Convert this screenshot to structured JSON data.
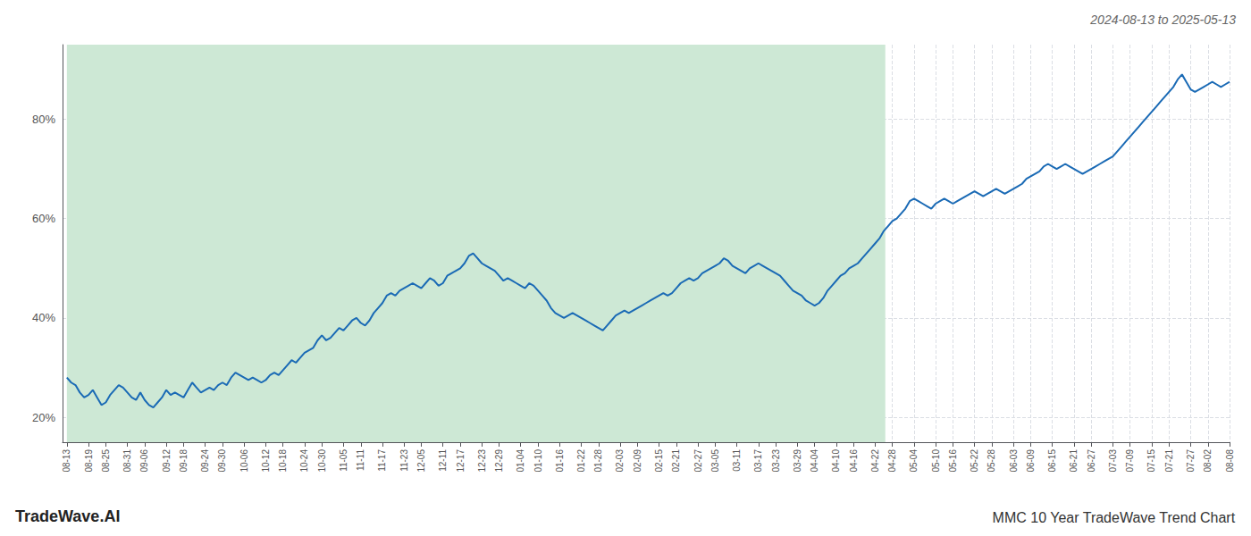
{
  "chart_data": {
    "type": "line",
    "title": "2024-08-13 to 2025-05-13",
    "annotations": [
      "TradeWave.AI",
      "MMC 10 Year TradeWave Trend Chart"
    ],
    "color": "#1a6ab5",
    "grid": true,
    "xlim": [
      0,
      270
    ],
    "xticks": [
      {
        "value": 1,
        "label": "08-13"
      },
      {
        "value": 6,
        "label": "08-19"
      },
      {
        "value": 10,
        "label": "08-25"
      },
      {
        "value": 15,
        "label": "08-31"
      },
      {
        "value": 19,
        "label": "09-06"
      },
      {
        "value": 24,
        "label": "09-12"
      },
      {
        "value": 28,
        "label": "09-18"
      },
      {
        "value": 33,
        "label": "09-24"
      },
      {
        "value": 37,
        "label": "09-30"
      },
      {
        "value": 42,
        "label": "10-06"
      },
      {
        "value": 47,
        "label": "10-12"
      },
      {
        "value": 51,
        "label": "10-18"
      },
      {
        "value": 56,
        "label": "10-24"
      },
      {
        "value": 60,
        "label": "10-30"
      },
      {
        "value": 65,
        "label": "11-05"
      },
      {
        "value": 69,
        "label": "11-11"
      },
      {
        "value": 74,
        "label": "11-17"
      },
      {
        "value": 79,
        "label": "11-23"
      },
      {
        "value": 83,
        "label": "12-05"
      },
      {
        "value": 88,
        "label": "12-11"
      },
      {
        "value": 92,
        "label": "12-17"
      },
      {
        "value": 97,
        "label": "12-23"
      },
      {
        "value": 101,
        "label": "12-29"
      },
      {
        "value": 106,
        "label": "01-04"
      },
      {
        "value": 110,
        "label": "01-10"
      },
      {
        "value": 115,
        "label": "01-16"
      },
      {
        "value": 120,
        "label": "01-22"
      },
      {
        "value": 124,
        "label": "01-28"
      },
      {
        "value": 129,
        "label": "02-03"
      },
      {
        "value": 133,
        "label": "02-09"
      },
      {
        "value": 138,
        "label": "02-15"
      },
      {
        "value": 142,
        "label": "02-21"
      },
      {
        "value": 147,
        "label": "02-27"
      },
      {
        "value": 151,
        "label": "03-05"
      },
      {
        "value": 156,
        "label": "03-11"
      },
      {
        "value": 161,
        "label": "03-17"
      },
      {
        "value": 165,
        "label": "03-23"
      },
      {
        "value": 170,
        "label": "03-29"
      },
      {
        "value": 174,
        "label": "04-04"
      },
      {
        "value": 179,
        "label": "04-10"
      },
      {
        "value": 183,
        "label": "04-16"
      },
      {
        "value": 188,
        "label": "04-22"
      },
      {
        "value": 192,
        "label": "04-28"
      },
      {
        "value": 197,
        "label": "05-04"
      },
      {
        "value": 202,
        "label": "05-10"
      },
      {
        "value": 206,
        "label": "05-16"
      },
      {
        "value": 211,
        "label": "05-22"
      },
      {
        "value": 215,
        "label": "05-28"
      },
      {
        "value": 220,
        "label": "06-03"
      },
      {
        "value": 224,
        "label": "06-09"
      },
      {
        "value": 229,
        "label": "06-15"
      },
      {
        "value": 234,
        "label": "06-21"
      },
      {
        "value": 238,
        "label": "06-27"
      },
      {
        "value": 243,
        "label": "07-03"
      },
      {
        "value": 247,
        "label": "07-09"
      },
      {
        "value": 252,
        "label": "07-15"
      },
      {
        "value": 256,
        "label": "07-21"
      },
      {
        "value": 261,
        "label": "07-27"
      },
      {
        "value": 265,
        "label": "08-02"
      },
      {
        "value": 270,
        "label": "08-08"
      }
    ],
    "ylim": [
      15,
      95
    ],
    "yticks": [
      {
        "value": 20,
        "label": "20%"
      },
      {
        "value": 40,
        "label": "40%"
      },
      {
        "value": 60,
        "label": "60%"
      },
      {
        "value": 80,
        "label": "80%"
      }
    ],
    "shaded_span": {
      "range": [
        1,
        190.35
      ],
      "color": "#cde8d5"
    },
    "values": [
      null,
      28.0,
      27.0,
      26.5,
      25.0,
      24.0,
      24.5,
      25.5,
      24.0,
      22.5,
      23.0,
      24.5,
      25.5,
      26.5,
      26.0,
      25.0,
      24.0,
      23.5,
      25.0,
      23.5,
      22.5,
      22.0,
      23.0,
      24.0,
      25.5,
      24.5,
      25.0,
      24.5,
      24.0,
      25.5,
      27.0,
      26.0,
      25.0,
      25.5,
      26.0,
      25.5,
      26.5,
      27.0,
      26.5,
      28.0,
      29.0,
      28.5,
      28.0,
      27.5,
      28.0,
      27.5,
      27.0,
      27.5,
      28.5,
      29.0,
      28.5,
      29.5,
      30.5,
      31.5,
      31.0,
      32.0,
      33.0,
      33.5,
      34.0,
      35.5,
      36.5,
      35.5,
      36.0,
      37.0,
      38.0,
      37.5,
      38.5,
      39.5,
      40.0,
      39.0,
      38.5,
      39.5,
      41.0,
      42.0,
      43.0,
      44.5,
      45.0,
      44.5,
      45.5,
      46.0,
      46.5,
      47.0,
      46.5,
      46.0,
      47.0,
      48.0,
      47.5,
      46.5,
      47.0,
      48.5,
      49.0,
      49.5,
      50.0,
      51.0,
      52.5,
      53.0,
      52.0,
      51.0,
      50.5,
      50.0,
      49.5,
      48.5,
      47.5,
      48.0,
      47.5,
      47.0,
      46.5,
      46.0,
      47.0,
      46.5,
      45.5,
      44.5,
      43.5,
      42.0,
      41.0,
      40.5,
      40.0,
      40.5,
      41.0,
      40.5,
      40.0,
      39.5,
      39.0,
      38.5,
      38.0,
      37.5,
      38.5,
      39.5,
      40.5,
      41.0,
      41.5,
      41.0,
      41.5,
      42.0,
      42.5,
      43.0,
      43.5,
      44.0,
      44.5,
      45.0,
      44.5,
      45.0,
      46.0,
      47.0,
      47.5,
      48.0,
      47.5,
      48.0,
      49.0,
      49.5,
      50.0,
      50.5,
      51.0,
      52.0,
      51.5,
      50.5,
      50.0,
      49.5,
      49.0,
      50.0,
      50.5,
      51.0,
      50.5,
      50.0,
      49.5,
      49.0,
      48.5,
      47.5,
      46.5,
      45.5,
      45.0,
      44.5,
      43.5,
      43.0,
      42.5,
      43.0,
      44.0,
      45.5,
      46.5,
      47.5,
      48.5,
      49.0,
      50.0,
      50.5,
      51.0,
      52.0,
      53.0,
      54.0,
      55.0,
      56.0,
      57.5,
      58.5,
      59.5,
      60.0,
      61.0,
      62.0,
      63.5,
      64.0,
      63.5,
      63.0,
      62.5,
      62.0,
      63.0,
      63.5,
      64.0,
      63.5,
      63.0,
      63.5,
      64.0,
      64.5,
      65.0,
      65.5,
      65.0,
      64.5,
      65.0,
      65.5,
      66.0,
      65.5,
      65.0,
      65.5,
      66.0,
      66.5,
      67.0,
      68.0,
      68.5,
      69.0,
      69.5,
      70.5,
      71.0,
      70.5,
      70.0,
      70.5,
      71.0,
      70.5,
      70.0,
      69.5,
      69.0,
      69.5,
      70.0,
      70.5,
      71.0,
      71.5,
      72.0,
      72.5,
      73.5,
      74.5,
      75.5,
      76.5,
      77.5,
      78.5,
      79.5,
      80.5,
      81.5,
      82.5,
      83.5,
      84.5,
      85.5,
      86.5,
      88.0,
      89.0,
      87.5,
      86.0,
      85.5,
      86.0,
      86.5,
      87.0,
      87.5,
      87.0,
      86.5,
      87.0,
      87.5
    ]
  }
}
